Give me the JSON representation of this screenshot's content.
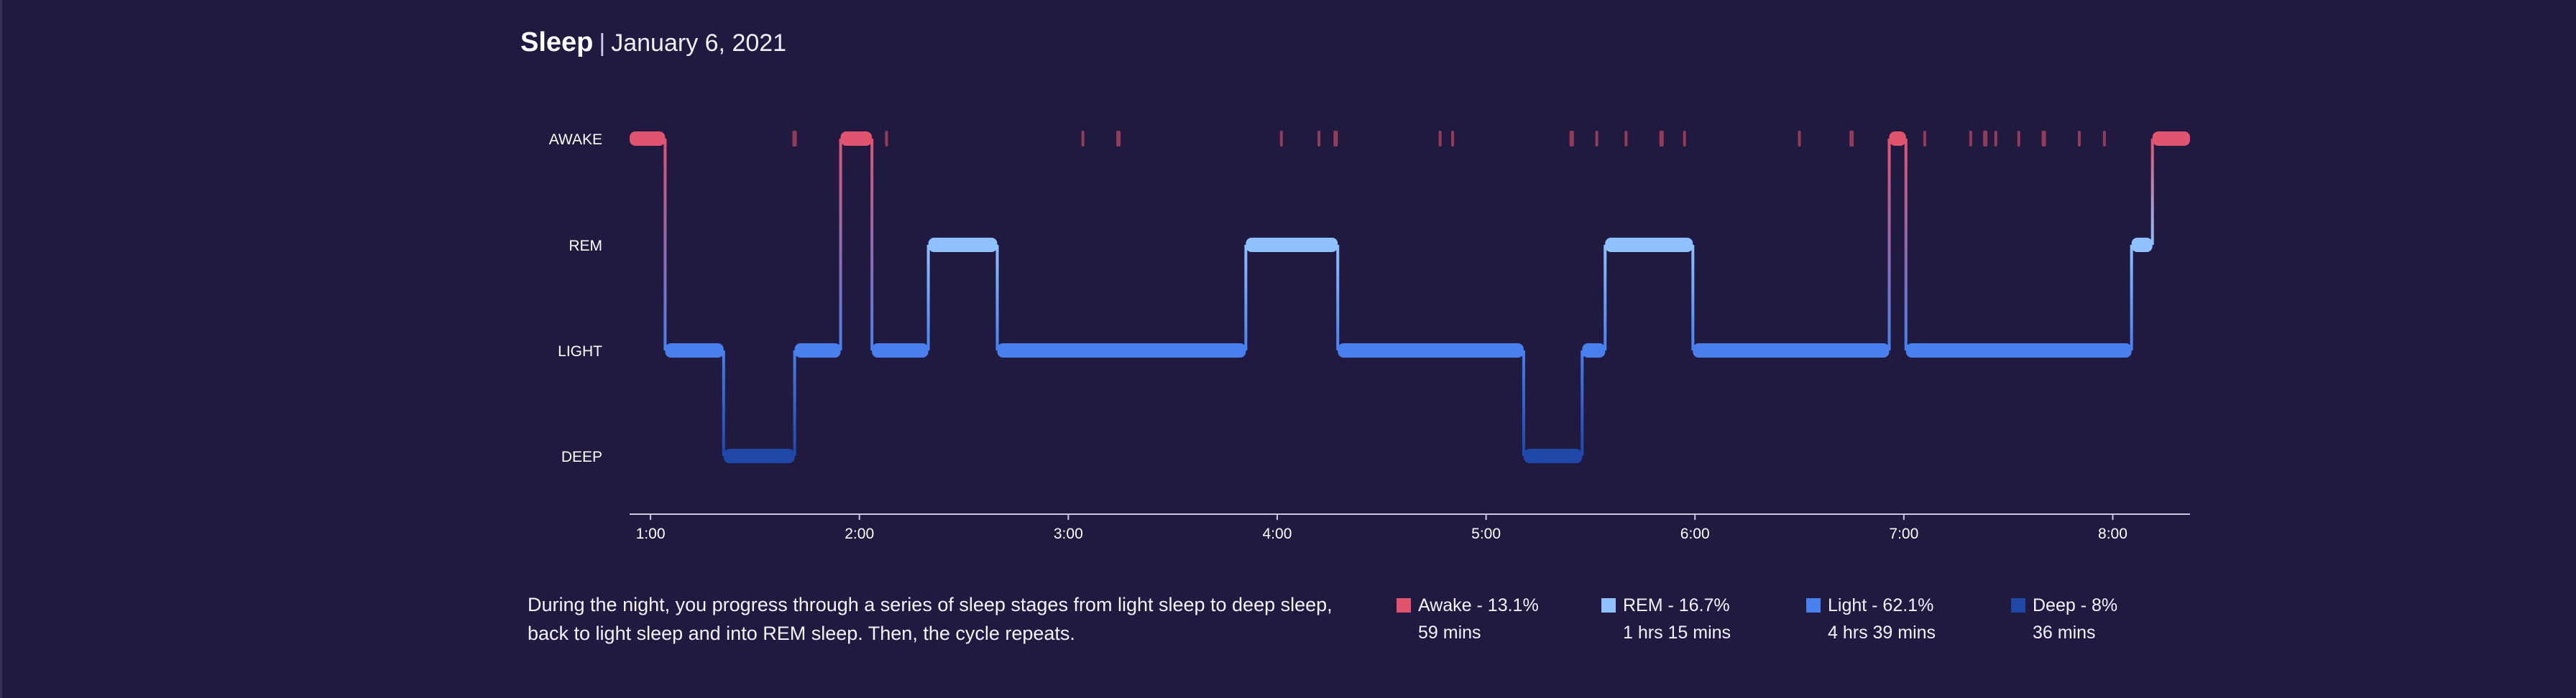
{
  "header": {
    "title": "Sleep",
    "separator": "|",
    "date": "January 6, 2021"
  },
  "description": "During the night, you progress through a series of sleep stages from light sleep to deep sleep, back to light sleep and into REM sleep. Then, the cycle repeats.",
  "colors": {
    "background": "#201a40",
    "awake": "#e0546f",
    "rem": "#8fc1ff",
    "light": "#4a80ee",
    "deep": "#1f47a8",
    "axis": "#c9c6dd"
  },
  "legend": [
    {
      "key": "awake",
      "label": "Awake - 13.1%",
      "duration": "59 mins",
      "color": "#e0546f"
    },
    {
      "key": "rem",
      "label": "REM - 16.7%",
      "duration": "1 hrs 15 mins",
      "color": "#8fc1ff"
    },
    {
      "key": "light",
      "label": "Light - 62.1%",
      "duration": "4 hrs 39 mins",
      "color": "#4a80ee"
    },
    {
      "key": "deep",
      "label": "Deep - 8%",
      "duration": "36 mins",
      "color": "#1f47a8"
    }
  ],
  "chart_data": {
    "type": "area",
    "title": "",
    "xlabel": "",
    "ylabel": "",
    "stages": [
      "AWAKE",
      "REM",
      "LIGHT",
      "DEEP"
    ],
    "x_ticks": [
      "1:00",
      "2:00",
      "3:00",
      "4:00",
      "5:00",
      "6:00",
      "7:00",
      "8:00"
    ],
    "x_range_hours": [
      0.9,
      8.37
    ],
    "segments": [
      {
        "stage": "AWAKE",
        "start": 0.9,
        "end": 1.07
      },
      {
        "stage": "LIGHT",
        "start": 1.07,
        "end": 1.35
      },
      {
        "stage": "DEEP",
        "start": 1.35,
        "end": 1.69
      },
      {
        "stage": "LIGHT",
        "start": 1.69,
        "end": 1.91
      },
      {
        "stage": "AWAKE",
        "start": 1.91,
        "end": 2.06
      },
      {
        "stage": "LIGHT",
        "start": 2.06,
        "end": 2.33
      },
      {
        "stage": "REM",
        "start": 2.33,
        "end": 2.66
      },
      {
        "stage": "LIGHT",
        "start": 2.66,
        "end": 3.85
      },
      {
        "stage": "REM",
        "start": 3.85,
        "end": 4.29
      },
      {
        "stage": "LIGHT",
        "start": 4.29,
        "end": 5.18
      },
      {
        "stage": "DEEP",
        "start": 5.18,
        "end": 5.46
      },
      {
        "stage": "LIGHT",
        "start": 5.46,
        "end": 5.57
      },
      {
        "stage": "REM",
        "start": 5.57,
        "end": 5.99
      },
      {
        "stage": "LIGHT",
        "start": 5.99,
        "end": 6.93
      },
      {
        "stage": "AWAKE",
        "start": 6.93,
        "end": 7.01
      },
      {
        "stage": "LIGHT",
        "start": 7.01,
        "end": 8.09
      },
      {
        "stage": "REM",
        "start": 8.09,
        "end": 8.19
      },
      {
        "stage": "AWAKE",
        "start": 8.19,
        "end": 8.37
      }
    ],
    "brief_awakenings": [
      1.69,
      2.13,
      3.07,
      3.24,
      4.02,
      4.2,
      4.28,
      4.78,
      4.84,
      5.41,
      5.53,
      5.67,
      5.84,
      5.95,
      6.5,
      6.75,
      7.1,
      7.32,
      7.39,
      7.44,
      7.55,
      7.67,
      7.84,
      7.96
    ]
  }
}
